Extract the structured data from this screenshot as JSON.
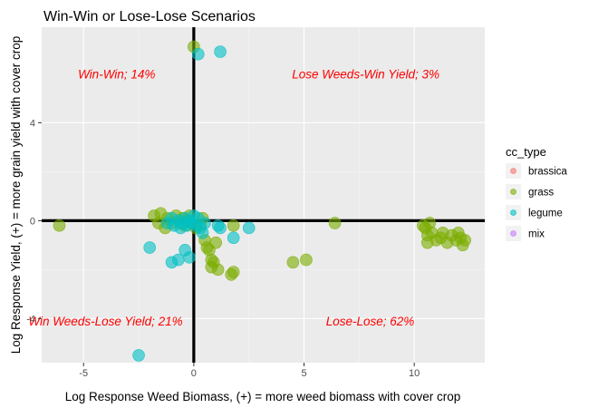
{
  "chart_data": {
    "type": "scatter",
    "title": "Win-Win or Lose-Lose Scenarios",
    "xlabel": "Log Response Weed Biomass, (+) = more weed biomass with cover crop",
    "ylabel": "Log Response Yield, (+) = more grain yield with cover crop",
    "xlim": [
      -6.9,
      13.2
    ],
    "ylim": [
      -5.8,
      7.9
    ],
    "x_ticks": [
      -5,
      0,
      5,
      10
    ],
    "y_ticks": [
      -4,
      0,
      4
    ],
    "grid": true,
    "legend_position": "right",
    "legend_title": "cc_type",
    "reference_lines": {
      "x": 0,
      "y": 0
    },
    "annotations": [
      {
        "text": "Win-Win; 14%",
        "x": -3.5,
        "y": 6.0,
        "color": "#ff0000"
      },
      {
        "text": "Lose Weeds-Win Yield; 3%",
        "x": 7.8,
        "y": 6.0,
        "color": "#ff0000"
      },
      {
        "text": "Win Weeds-Lose Yield; 21%",
        "x": -4.0,
        "y": -4.1,
        "color": "#ff0000"
      },
      {
        "text": "Lose-Lose; 62%",
        "x": 8.0,
        "y": -4.1,
        "color": "#ff0000"
      }
    ],
    "series": [
      {
        "name": "brassica",
        "color": "#F8766D",
        "points": []
      },
      {
        "name": "grass",
        "color": "#7CAE00",
        "points": [
          [
            -6.1,
            -0.2
          ],
          [
            -1.8,
            0.2
          ],
          [
            -1.6,
            -0.1
          ],
          [
            -1.5,
            0.3
          ],
          [
            -1.3,
            -0.3
          ],
          [
            -1.2,
            0.1
          ],
          [
            -1.0,
            -0.1
          ],
          [
            -0.8,
            0.2
          ],
          [
            -0.6,
            -0.1
          ],
          [
            -0.5,
            0.1
          ],
          [
            -0.4,
            -0.2
          ],
          [
            -0.3,
            0.0
          ],
          [
            -0.2,
            0.2
          ],
          [
            -0.1,
            -0.1
          ],
          [
            0.0,
            7.1
          ],
          [
            0.1,
            -0.3
          ],
          [
            0.3,
            -0.2
          ],
          [
            0.4,
            0.1
          ],
          [
            0.5,
            -0.8
          ],
          [
            0.6,
            -1.1
          ],
          [
            0.7,
            -1.2
          ],
          [
            0.8,
            -1.6
          ],
          [
            0.8,
            -1.9
          ],
          [
            0.9,
            -1.7
          ],
          [
            1.0,
            -0.9
          ],
          [
            1.1,
            -2.0
          ],
          [
            1.7,
            -2.2
          ],
          [
            1.8,
            -2.1
          ],
          [
            1.8,
            -0.2
          ],
          [
            4.5,
            -1.7
          ],
          [
            5.1,
            -1.6
          ],
          [
            6.4,
            -0.1
          ],
          [
            10.4,
            -0.2
          ],
          [
            10.5,
            -0.3
          ],
          [
            10.6,
            -0.6
          ],
          [
            10.6,
            -0.9
          ],
          [
            10.7,
            -0.1
          ],
          [
            10.8,
            -0.5
          ],
          [
            11.0,
            -0.8
          ],
          [
            11.2,
            -0.7
          ],
          [
            11.3,
            -0.5
          ],
          [
            11.5,
            -0.9
          ],
          [
            11.7,
            -0.6
          ],
          [
            11.9,
            -0.8
          ],
          [
            12.0,
            -0.5
          ],
          [
            12.1,
            -0.7
          ],
          [
            12.2,
            -1.0
          ],
          [
            12.3,
            -0.8
          ]
        ]
      },
      {
        "name": "legume",
        "color": "#00BFC4",
        "points": [
          [
            0.2,
            6.8
          ],
          [
            1.2,
            6.9
          ],
          [
            -1.2,
            -0.1
          ],
          [
            -1.0,
            0.1
          ],
          [
            -0.9,
            -0.2
          ],
          [
            -0.7,
            0.0
          ],
          [
            -0.6,
            -0.3
          ],
          [
            -0.5,
            -0.1
          ],
          [
            -0.4,
            0.1
          ],
          [
            -0.3,
            -0.2
          ],
          [
            -0.2,
            0.0
          ],
          [
            -0.1,
            -0.1
          ],
          [
            0.0,
            0.2
          ],
          [
            0.1,
            -0.2
          ],
          [
            0.2,
            0.1
          ],
          [
            0.3,
            -0.3
          ],
          [
            0.5,
            -0.1
          ],
          [
            1.1,
            -0.2
          ],
          [
            1.2,
            -0.3
          ],
          [
            1.8,
            -0.7
          ],
          [
            2.5,
            -0.3
          ],
          [
            -2.0,
            -1.1
          ],
          [
            -1.0,
            -1.7
          ],
          [
            -0.7,
            -1.6
          ],
          [
            -0.4,
            -1.2
          ],
          [
            -2.5,
            -5.5
          ],
          [
            -0.2,
            -1.5
          ],
          [
            0.4,
            -0.5
          ]
        ]
      },
      {
        "name": "mix",
        "color": "#C77CFF",
        "points": []
      }
    ]
  }
}
